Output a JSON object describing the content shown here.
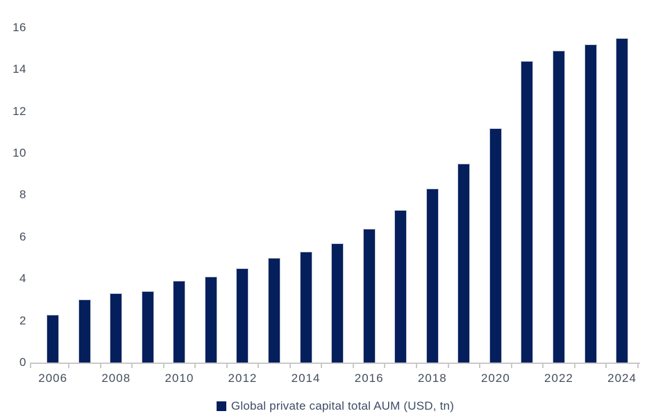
{
  "chart_data": {
    "type": "bar",
    "title": "",
    "xlabel": "",
    "ylabel": "",
    "categories": [
      "2006",
      "2007",
      "2008",
      "2009",
      "2010",
      "2011",
      "2012",
      "2013",
      "2014",
      "2015",
      "2016",
      "2017",
      "2018",
      "2019",
      "2020",
      "2021",
      "2022",
      "2023",
      "2024"
    ],
    "values": [
      2.3,
      3.0,
      3.3,
      3.4,
      3.9,
      4.1,
      4.5,
      5.0,
      5.3,
      5.7,
      6.4,
      7.3,
      8.3,
      9.5,
      11.2,
      14.4,
      14.9,
      15.2,
      15.5
    ],
    "series_name": "Global private capital total AUM (USD, tn)",
    "ylim": [
      0,
      16
    ],
    "yticks": [
      0,
      2,
      4,
      6,
      8,
      10,
      12,
      14,
      16
    ],
    "x_tick_labels": [
      "2006",
      "2008",
      "2010",
      "2012",
      "2014",
      "2016",
      "2018",
      "2020",
      "2022",
      "2024"
    ],
    "x_label_every": 2,
    "grid": false,
    "legend_position": "bottom-center",
    "colors": {
      "bar_fill": "#041f5c",
      "bar_border": "#c7ccd6",
      "axis_line": "#c9c9c9",
      "tick": "#c9c9c9",
      "axis_text": "#434e5b",
      "legend_text": "#3d4d66",
      "background": "#ffffff"
    }
  }
}
